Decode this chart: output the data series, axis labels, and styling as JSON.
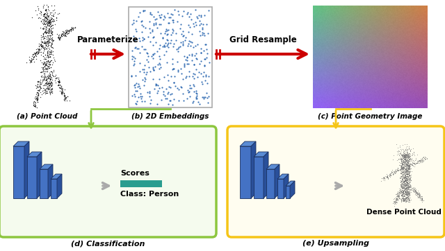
{
  "bg_color": "#ffffff",
  "arrow_color": "#cc0000",
  "green_box_color": "#8dc63f",
  "green_box_face": "#f5fbee",
  "yellow_box_color": "#f5c518",
  "yellow_box_face": "#fffdf0",
  "blue_front": "#4472c4",
  "blue_top": "#5b8cd4",
  "blue_right": "#2a509a",
  "teal_bar_color": "#2a9d8f",
  "label_a": "(a) Point Cloud",
  "label_b": "(b) 2D Embeddings",
  "label_c": "(c) Point Geometry Image",
  "label_d": "(d) Classification",
  "label_e": "(e) Upsampling",
  "arrow1_label": "Parameterize",
  "arrow2_label": "Grid Resample",
  "scores_label": "Scores",
  "class_label": "Class: Person",
  "dense_label": "Dense Point Cloud"
}
